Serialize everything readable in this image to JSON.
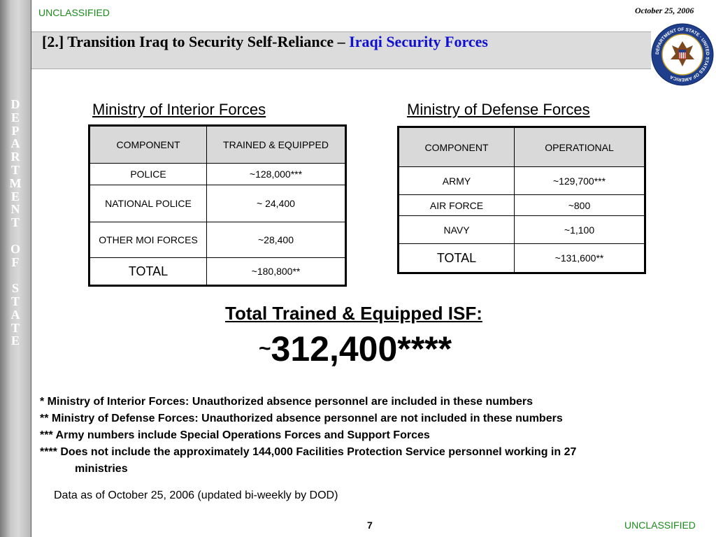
{
  "header": {
    "classification": "UNCLASSIFIED",
    "date": "October 25, 2006",
    "title_prefix": "[2.] Transition Iraq to Security Self-Reliance – ",
    "title_highlight": "Iraqi Security Forces",
    "seal_text": "DEPARTMENT OF STATE · UNITED STATES OF AMERICA"
  },
  "sidebar": {
    "letters": [
      "D",
      "E",
      "P",
      "A",
      "R",
      "T",
      "M",
      "E",
      "N",
      "T",
      "",
      "O",
      "F",
      "",
      "S",
      "T",
      "A",
      "T",
      "E"
    ]
  },
  "moi": {
    "title": "Ministry of Interior Forces",
    "headers": [
      "COMPONENT",
      "TRAINED & EQUIPPED"
    ],
    "rows": [
      {
        "component": "POLICE",
        "value": "~128,000***"
      },
      {
        "component": "NATIONAL POLICE",
        "value": "~ 24,400"
      },
      {
        "component": "OTHER MOI FORCES",
        "value": "~28,400"
      },
      {
        "component": "TOTAL",
        "value": "~180,800**"
      }
    ]
  },
  "mod": {
    "title": "Ministry of Defense Forces",
    "headers": [
      "COMPONENT",
      "OPERATIONAL"
    ],
    "rows": [
      {
        "component": "ARMY",
        "value": "~129,700***"
      },
      {
        "component": "AIR FORCE",
        "value": "~800"
      },
      {
        "component": "NAVY",
        "value": "~1,100"
      },
      {
        "component": "TOTAL",
        "value": "~131,600**"
      }
    ]
  },
  "isf": {
    "label": "Total Trained & Equipped ISF:",
    "tilde": "~",
    "value": "312,400****"
  },
  "footnotes": [
    "* Ministry of Interior Forces: Unauthorized absence personnel are included in these numbers",
    "** Ministry of Defense Forces: Unauthorized absence personnel are not included in these numbers",
    "*** Army numbers include Special Operations Forces and Support Forces",
    "**** Does not include the approximately 144,000 Facilities Protection Service personnel working in 27"
  ],
  "footnote_continuation": "ministries",
  "data_as": "Data as of October 25, 2006 (updated bi-weekly by DOD)",
  "footer": {
    "page_number": "7",
    "classification": "UNCLASSIFIED"
  }
}
